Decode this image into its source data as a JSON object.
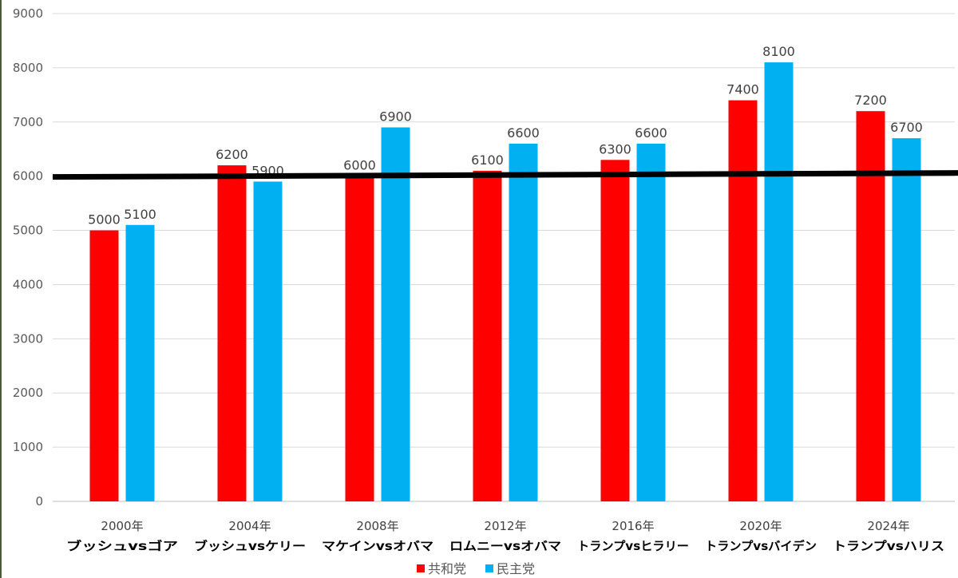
{
  "chart_data": {
    "type": "bar",
    "title": "",
    "xlabel": "",
    "ylabel": "",
    "ylim": [
      0,
      9000
    ],
    "yticks": [
      0,
      1000,
      2000,
      3000,
      4000,
      5000,
      6000,
      7000,
      8000,
      9000
    ],
    "grid": true,
    "categories": [
      {
        "year": "2000年",
        "matchup": "ブッシュvsゴア"
      },
      {
        "year": "2004年",
        "matchup": "ブッシュvsケリー"
      },
      {
        "year": "2008年",
        "matchup": "マケインvsオバマ"
      },
      {
        "year": "2012年",
        "matchup": "ロムニーvsオバマ"
      },
      {
        "year": "2016年",
        "matchup": "トランプvsヒラリー"
      },
      {
        "year": "2020年",
        "matchup": "トランプvsバイデン"
      },
      {
        "year": "2024年",
        "matchup": "トランプvsハリス"
      }
    ],
    "series": [
      {
        "name": "共和党",
        "color": "#ff0000",
        "values": [
          5000,
          6200,
          6000,
          6100,
          6300,
          7400,
          7200
        ]
      },
      {
        "name": "民主党",
        "color": "#00b0f0",
        "values": [
          5100,
          5900,
          6900,
          6600,
          6600,
          8100,
          6700
        ]
      }
    ],
    "reference_line": {
      "value": 6000,
      "color": "#000000"
    },
    "legend_position": "bottom-center"
  }
}
